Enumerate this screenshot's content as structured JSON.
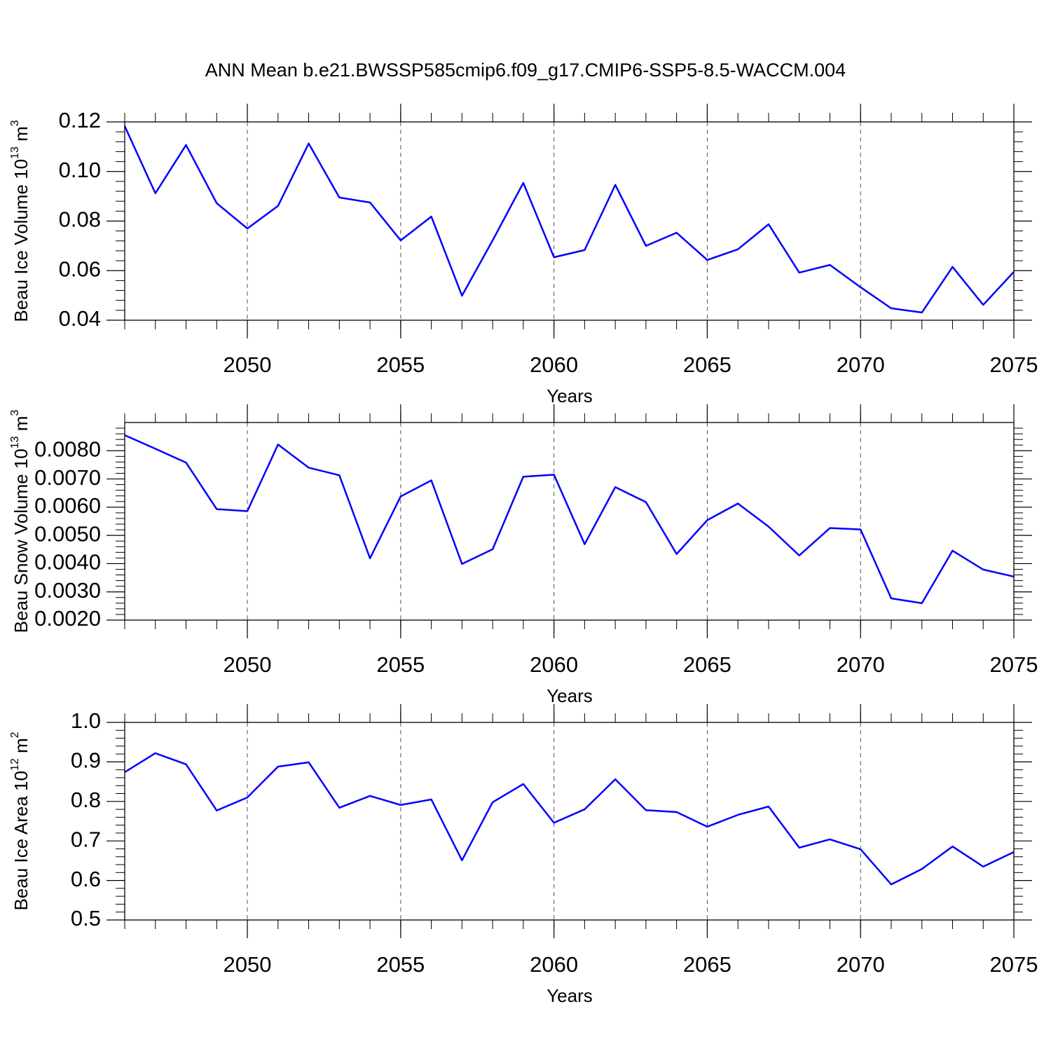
{
  "chart_data": [
    {
      "type": "line",
      "title": "ANN Mean b.e21.BWSSP585cmip6.f09_g17.CMIP6-SSP5-8.5-WACCM.004",
      "xlabel": "Years",
      "ylabel": "Beau Ice Volume 10",
      "ylabel_exp": "13",
      "ylabel_unit": " m",
      "ylabel_unit_exp": "3",
      "color": "#0000ff",
      "x": [
        2046,
        2047,
        2048,
        2049,
        2050,
        2051,
        2052,
        2053,
        2054,
        2055,
        2056,
        2057,
        2058,
        2059,
        2060,
        2061,
        2062,
        2063,
        2064,
        2065,
        2066,
        2067,
        2068,
        2069,
        2070,
        2071,
        2072,
        2073,
        2074,
        2075
      ],
      "values": [
        0.1183,
        0.0912,
        0.1107,
        0.0872,
        0.077,
        0.0861,
        0.1113,
        0.0895,
        0.0875,
        0.0722,
        0.0818,
        0.0499,
        0.0722,
        0.0954,
        0.0654,
        0.0683,
        0.0946,
        0.07,
        0.0753,
        0.0643,
        0.0686,
        0.0787,
        0.0592,
        0.0623,
        0.0533,
        0.0448,
        0.0431,
        0.0615,
        0.0462,
        0.0595
      ],
      "xlim": [
        2046,
        2075
      ],
      "xticks": [
        2050,
        2055,
        2060,
        2065,
        2070,
        2075
      ],
      "ylim": [
        0.04,
        0.12
      ],
      "yticks": [
        {
          "value": 0.04,
          "label": "0.04"
        },
        {
          "value": 0.06,
          "label": "0.06"
        },
        {
          "value": 0.08,
          "label": "0.08"
        },
        {
          "value": 0.1,
          "label": "0.10"
        },
        {
          "value": 0.12,
          "label": "0.12"
        }
      ],
      "grid": true
    },
    {
      "type": "line",
      "xlabel": "Years",
      "ylabel": "Beau Snow Volume 10",
      "ylabel_exp": "13",
      "ylabel_unit": " m",
      "ylabel_unit_exp": "3",
      "color": "#0000ff",
      "x": [
        2046,
        2047,
        2048,
        2049,
        2050,
        2051,
        2052,
        2053,
        2054,
        2055,
        2056,
        2057,
        2058,
        2059,
        2060,
        2061,
        2062,
        2063,
        2064,
        2065,
        2066,
        2067,
        2068,
        2069,
        2070,
        2071,
        2072,
        2073,
        2074,
        2075
      ],
      "values": [
        0.00855,
        0.00807,
        0.00758,
        0.00593,
        0.00586,
        0.00822,
        0.0074,
        0.00713,
        0.00419,
        0.00638,
        0.00695,
        0.00399,
        0.00451,
        0.00708,
        0.00715,
        0.00469,
        0.00671,
        0.00618,
        0.00434,
        0.00554,
        0.00613,
        0.00531,
        0.00429,
        0.00526,
        0.00521,
        0.00277,
        0.0026,
        0.00446,
        0.00379,
        0.00354
      ],
      "xlim": [
        2046,
        2075
      ],
      "xticks": [
        2050,
        2055,
        2060,
        2065,
        2070,
        2075
      ],
      "ylim": [
        0.002,
        0.009
      ],
      "yticks": [
        {
          "value": 0.002,
          "label": "0.0020"
        },
        {
          "value": 0.003,
          "label": "0.0030"
        },
        {
          "value": 0.004,
          "label": "0.0040"
        },
        {
          "value": 0.005,
          "label": "0.0050"
        },
        {
          "value": 0.006,
          "label": "0.0060"
        },
        {
          "value": 0.007,
          "label": "0.0070"
        },
        {
          "value": 0.008,
          "label": "0.0080"
        }
      ],
      "grid": true
    },
    {
      "type": "line",
      "xlabel": "Years",
      "ylabel": "Beau Ice Area 10",
      "ylabel_exp": "12",
      "ylabel_unit": " m",
      "ylabel_unit_exp": "2",
      "color": "#0000ff",
      "x": [
        2046,
        2047,
        2048,
        2049,
        2050,
        2051,
        2052,
        2053,
        2054,
        2055,
        2056,
        2057,
        2058,
        2059,
        2060,
        2061,
        2062,
        2063,
        2064,
        2065,
        2066,
        2067,
        2068,
        2069,
        2070,
        2071,
        2072,
        2073,
        2074,
        2075
      ],
      "values": [
        0.874,
        0.922,
        0.894,
        0.777,
        0.81,
        0.888,
        0.899,
        0.784,
        0.814,
        0.791,
        0.805,
        0.651,
        0.798,
        0.844,
        0.746,
        0.78,
        0.856,
        0.778,
        0.773,
        0.736,
        0.766,
        0.787,
        0.683,
        0.704,
        0.679,
        0.59,
        0.629,
        0.686,
        0.635,
        0.672
      ],
      "xlim": [
        2046,
        2075
      ],
      "xticks": [
        2050,
        2055,
        2060,
        2065,
        2070,
        2075
      ],
      "ylim": [
        0.5,
        1.0
      ],
      "yticks": [
        {
          "value": 0.5,
          "label": "0.5"
        },
        {
          "value": 0.6,
          "label": "0.6"
        },
        {
          "value": 0.7,
          "label": "0.7"
        },
        {
          "value": 0.8,
          "label": "0.8"
        },
        {
          "value": 0.9,
          "label": "0.9"
        },
        {
          "value": 1.0,
          "label": "1.0"
        }
      ],
      "grid": true
    }
  ]
}
